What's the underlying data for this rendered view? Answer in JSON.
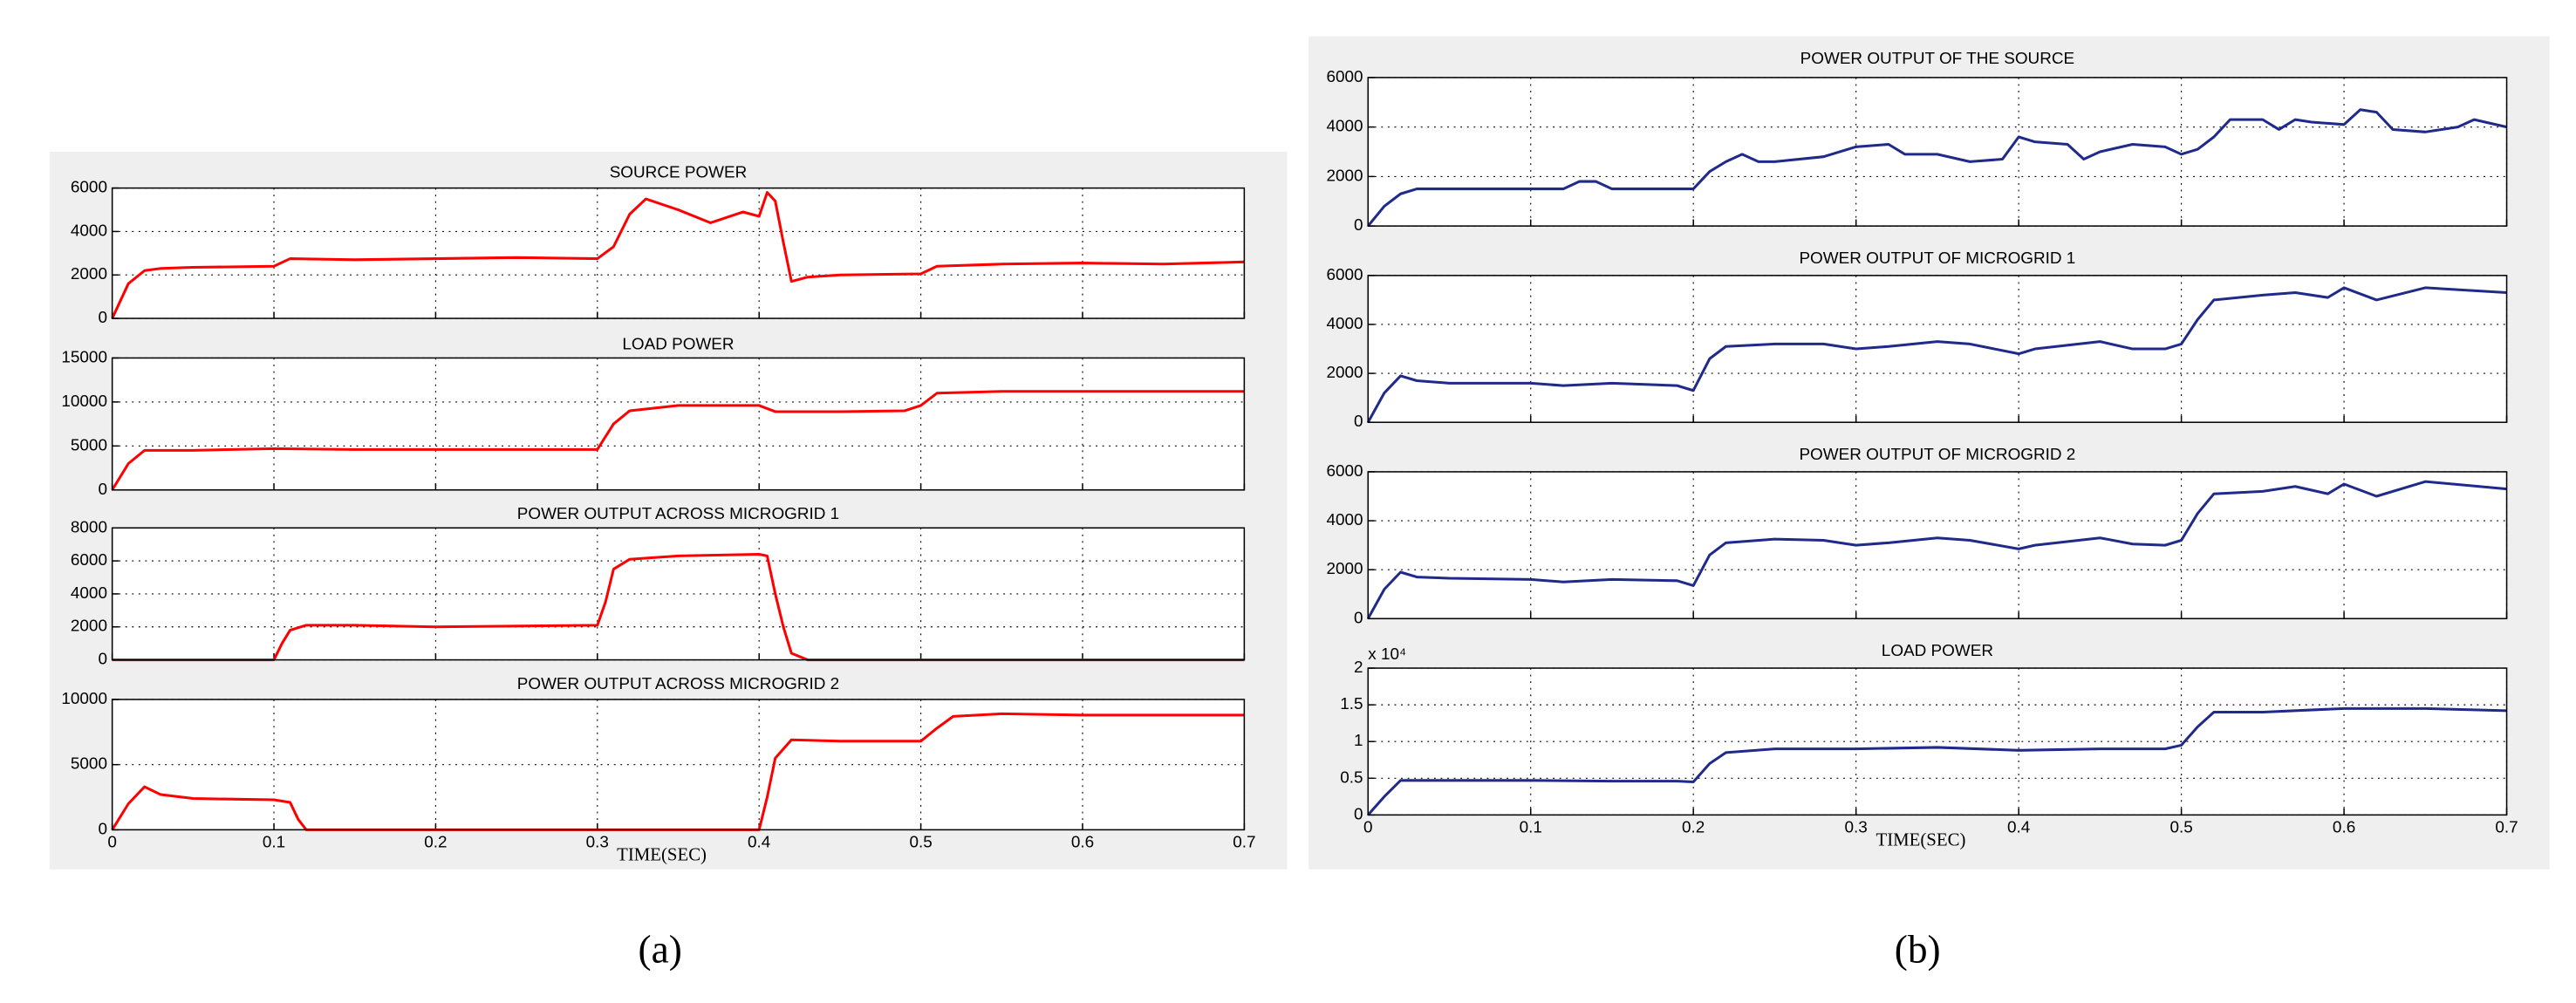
{
  "captions": [
    "(a)",
    "(b)"
  ],
  "chart_data": [
    {
      "type": "line",
      "title": "SOURCE POWER",
      "color": "#ff0000",
      "grid": true,
      "show_xticklabels": false,
      "x": [
        0,
        0.01,
        0.02,
        0.03,
        0.05,
        0.1,
        0.11,
        0.15,
        0.2,
        0.25,
        0.3,
        0.31,
        0.32,
        0.33,
        0.35,
        0.37,
        0.39,
        0.4,
        0.405,
        0.41,
        0.415,
        0.42,
        0.43,
        0.45,
        0.5,
        0.51,
        0.55,
        0.6,
        0.65,
        0.7
      ],
      "values": [
        0,
        1600,
        2200,
        2300,
        2350,
        2400,
        2750,
        2700,
        2750,
        2800,
        2750,
        3300,
        4800,
        5500,
        5000,
        4400,
        4900,
        4700,
        5800,
        5400,
        3500,
        1700,
        1900,
        2000,
        2050,
        2400,
        2500,
        2550,
        2500,
        2600
      ],
      "xlim": [
        0,
        0.7
      ],
      "xticks": [
        0,
        0.1,
        0.2,
        0.3,
        0.4,
        0.5,
        0.6,
        0.7
      ],
      "ylim": [
        0,
        6000
      ],
      "yticks": [
        0,
        2000,
        4000,
        6000
      ]
    },
    {
      "type": "line",
      "title": "LOAD POWER",
      "color": "#ff0000",
      "grid": true,
      "show_xticklabels": false,
      "x": [
        0,
        0.01,
        0.02,
        0.05,
        0.1,
        0.15,
        0.2,
        0.3,
        0.31,
        0.32,
        0.35,
        0.4,
        0.41,
        0.45,
        0.49,
        0.5,
        0.51,
        0.55,
        0.6,
        0.7
      ],
      "values": [
        0,
        3000,
        4500,
        4500,
        4700,
        4600,
        4600,
        4600,
        7500,
        9000,
        9600,
        9600,
        8900,
        8900,
        9000,
        9600,
        11000,
        11200,
        11200,
        11200
      ],
      "xlim": [
        0,
        0.7
      ],
      "xticks": [
        0,
        0.1,
        0.2,
        0.3,
        0.4,
        0.5,
        0.6,
        0.7
      ],
      "ylim": [
        0,
        15000
      ],
      "yticks": [
        0,
        5000,
        10000,
        15000
      ]
    },
    {
      "type": "line",
      "title": "POWER OUTPUT ACROSS MICROGRID 1",
      "color": "#ff0000",
      "grid": true,
      "show_xticklabels": false,
      "x": [
        0,
        0.1,
        0.105,
        0.11,
        0.12,
        0.15,
        0.2,
        0.3,
        0.305,
        0.31,
        0.32,
        0.35,
        0.4,
        0.405,
        0.41,
        0.415,
        0.42,
        0.43,
        0.5,
        0.6,
        0.7
      ],
      "values": [
        0,
        0,
        1000,
        1800,
        2100,
        2100,
        2000,
        2100,
        3500,
        5500,
        6100,
        6300,
        6400,
        6300,
        4000,
        2000,
        400,
        0,
        0,
        0,
        0
      ],
      "xlim": [
        0,
        0.7
      ],
      "xticks": [
        0,
        0.1,
        0.2,
        0.3,
        0.4,
        0.5,
        0.6,
        0.7
      ],
      "ylim": [
        0,
        8000
      ],
      "yticks": [
        0,
        2000,
        4000,
        6000,
        8000
      ]
    },
    {
      "type": "line",
      "title": "POWER OUTPUT ACROSS MICROGRID 2",
      "color": "#ff0000",
      "grid": true,
      "show_xticklabels": true,
      "xlabel": "TIME(SEC)",
      "x": [
        0,
        0.01,
        0.02,
        0.03,
        0.05,
        0.1,
        0.11,
        0.115,
        0.12,
        0.2,
        0.3,
        0.4,
        0.405,
        0.41,
        0.42,
        0.45,
        0.5,
        0.51,
        0.52,
        0.55,
        0.6,
        0.7
      ],
      "values": [
        0,
        2000,
        3300,
        2700,
        2400,
        2300,
        2100,
        800,
        0,
        0,
        0,
        0,
        2500,
        5500,
        6900,
        6800,
        6800,
        7800,
        8700,
        8900,
        8800,
        8800
      ],
      "xlim": [
        0,
        0.7
      ],
      "xticks": [
        0,
        0.1,
        0.2,
        0.3,
        0.4,
        0.5,
        0.6,
        0.7
      ],
      "ylim": [
        0,
        10000
      ],
      "yticks": [
        0,
        5000,
        10000
      ]
    },
    {
      "type": "line",
      "title": "POWER OUTPUT OF THE SOURCE",
      "color": "#1f2a8a",
      "grid": true,
      "show_xticklabels": false,
      "x": [
        0,
        0.01,
        0.02,
        0.03,
        0.05,
        0.1,
        0.12,
        0.13,
        0.14,
        0.15,
        0.2,
        0.21,
        0.22,
        0.23,
        0.24,
        0.25,
        0.28,
        0.3,
        0.32,
        0.33,
        0.35,
        0.37,
        0.39,
        0.4,
        0.41,
        0.43,
        0.44,
        0.45,
        0.47,
        0.49,
        0.5,
        0.51,
        0.52,
        0.53,
        0.55,
        0.56,
        0.57,
        0.58,
        0.6,
        0.61,
        0.62,
        0.63,
        0.65,
        0.67,
        0.68,
        0.7
      ],
      "values": [
        0,
        800,
        1300,
        1500,
        1500,
        1500,
        1500,
        1800,
        1800,
        1500,
        1500,
        2200,
        2600,
        2900,
        2600,
        2600,
        2800,
        3200,
        3300,
        2900,
        2900,
        2600,
        2700,
        3600,
        3400,
        3300,
        2700,
        3000,
        3300,
        3200,
        2900,
        3100,
        3600,
        4300,
        4300,
        3900,
        4300,
        4200,
        4100,
        4700,
        4600,
        3900,
        3800,
        4000,
        4300,
        4000
      ],
      "xlim": [
        0,
        0.7
      ],
      "xticks": [
        0,
        0.1,
        0.2,
        0.3,
        0.4,
        0.5,
        0.6,
        0.7
      ],
      "ylim": [
        0,
        6000
      ],
      "yticks": [
        0,
        2000,
        4000,
        6000
      ]
    },
    {
      "type": "line",
      "title": "POWER OUTPUT OF MICROGRID 1",
      "color": "#1f2a8a",
      "grid": true,
      "show_xticklabels": false,
      "x": [
        0,
        0.01,
        0.02,
        0.03,
        0.05,
        0.1,
        0.12,
        0.15,
        0.19,
        0.2,
        0.21,
        0.22,
        0.25,
        0.28,
        0.3,
        0.32,
        0.35,
        0.37,
        0.4,
        0.41,
        0.45,
        0.47,
        0.49,
        0.5,
        0.51,
        0.52,
        0.55,
        0.57,
        0.59,
        0.6,
        0.62,
        0.65,
        0.7
      ],
      "values": [
        0,
        1200,
        1900,
        1700,
        1600,
        1600,
        1500,
        1600,
        1500,
        1300,
        2600,
        3100,
        3200,
        3200,
        3000,
        3100,
        3300,
        3200,
        2800,
        3000,
        3300,
        3000,
        3000,
        3200,
        4200,
        5000,
        5200,
        5300,
        5100,
        5500,
        5000,
        5500,
        5300
      ],
      "xlim": [
        0,
        0.7
      ],
      "xticks": [
        0,
        0.1,
        0.2,
        0.3,
        0.4,
        0.5,
        0.6,
        0.7
      ],
      "ylim": [
        0,
        6000
      ],
      "yticks": [
        0,
        2000,
        4000,
        6000
      ]
    },
    {
      "type": "line",
      "title": "POWER OUTPUT OF MICROGRID 2",
      "color": "#1f2a8a",
      "grid": true,
      "show_xticklabels": false,
      "x": [
        0,
        0.01,
        0.02,
        0.03,
        0.05,
        0.1,
        0.12,
        0.15,
        0.19,
        0.2,
        0.21,
        0.22,
        0.25,
        0.28,
        0.3,
        0.32,
        0.35,
        0.37,
        0.4,
        0.41,
        0.45,
        0.47,
        0.49,
        0.5,
        0.51,
        0.52,
        0.55,
        0.57,
        0.59,
        0.6,
        0.62,
        0.65,
        0.7
      ],
      "values": [
        0,
        1200,
        1900,
        1700,
        1650,
        1600,
        1500,
        1600,
        1550,
        1350,
        2600,
        3100,
        3250,
        3200,
        3000,
        3100,
        3300,
        3200,
        2850,
        3000,
        3300,
        3050,
        3000,
        3200,
        4300,
        5100,
        5200,
        5400,
        5100,
        5500,
        5000,
        5600,
        5300
      ],
      "xlim": [
        0,
        0.7
      ],
      "xticks": [
        0,
        0.1,
        0.2,
        0.3,
        0.4,
        0.5,
        0.6,
        0.7
      ],
      "ylim": [
        0,
        6000
      ],
      "yticks": [
        0,
        2000,
        4000,
        6000
      ]
    },
    {
      "type": "line",
      "title": "LOAD POWER",
      "color": "#1f2a8a",
      "grid": true,
      "show_xticklabels": true,
      "xlabel": "TIME(SEC)",
      "y_scale_label": "x 10⁴",
      "x": [
        0,
        0.01,
        0.02,
        0.05,
        0.1,
        0.15,
        0.19,
        0.2,
        0.21,
        0.22,
        0.25,
        0.3,
        0.35,
        0.4,
        0.45,
        0.49,
        0.5,
        0.51,
        0.52,
        0.55,
        0.6,
        0.65,
        0.7
      ],
      "values": [
        0,
        0.25,
        0.47,
        0.47,
        0.47,
        0.46,
        0.46,
        0.45,
        0.7,
        0.85,
        0.9,
        0.9,
        0.92,
        0.88,
        0.9,
        0.9,
        0.95,
        1.2,
        1.4,
        1.4,
        1.45,
        1.45,
        1.42
      ],
      "xlim": [
        0,
        0.7
      ],
      "xticks": [
        0,
        0.1,
        0.2,
        0.3,
        0.4,
        0.5,
        0.6,
        0.7
      ],
      "ylim": [
        0,
        2
      ],
      "yticks": [
        0,
        0.5,
        1,
        1.5,
        2
      ]
    }
  ]
}
